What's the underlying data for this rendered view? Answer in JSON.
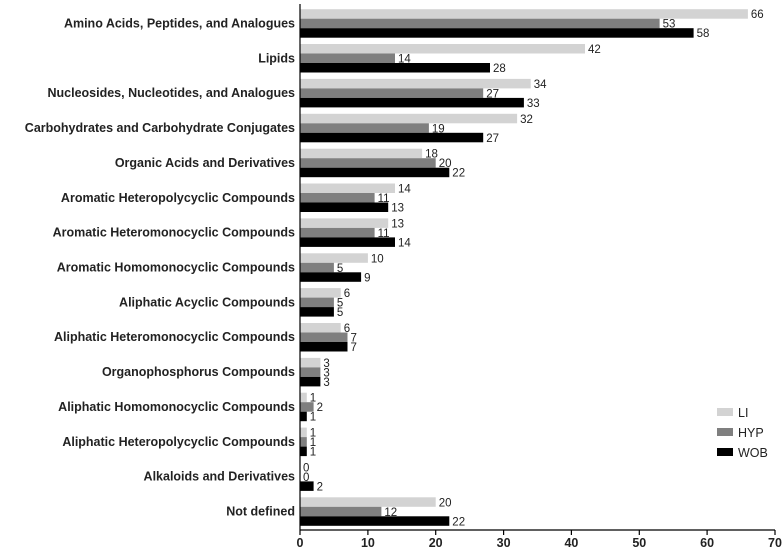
{
  "chart_data": {
    "type": "bar",
    "orientation": "horizontal",
    "categories": [
      "Amino Acids, Peptides, and Analogues",
      "Lipids",
      "Nucleosides, Nucleotides, and Analogues",
      "Carbohydrates and Carbohydrate Conjugates",
      "Organic Acids and Derivatives",
      "Aromatic Heteropolycyclic Compounds",
      "Aromatic Heteromonocyclic Compounds",
      "Aromatic Homomonocyclic Compounds",
      "Aliphatic Acyclic Compounds",
      "Aliphatic Heteromonocyclic Compounds",
      "Organophosphorus Compounds",
      "Aliphatic Homomonocyclic Compounds",
      "Aliphatic Heteropolycyclic Compounds",
      "Alkaloids and Derivatives",
      "Not defined"
    ],
    "series": [
      {
        "name": "LI",
        "color": "#d3d3d3",
        "values": [
          66,
          42,
          34,
          32,
          18,
          14,
          13,
          10,
          6,
          6,
          3,
          1,
          1,
          0,
          20
        ]
      },
      {
        "name": "HYP",
        "color": "#7f7f7f",
        "values": [
          53,
          14,
          27,
          19,
          20,
          11,
          11,
          5,
          5,
          7,
          3,
          2,
          1,
          0,
          12
        ]
      },
      {
        "name": "WOB",
        "color": "#000000",
        "values": [
          58,
          28,
          33,
          27,
          22,
          13,
          14,
          9,
          5,
          7,
          3,
          1,
          1,
          2,
          22
        ]
      }
    ],
    "xlim": [
      0,
      70
    ],
    "xticks": [
      0,
      10,
      20,
      30,
      40,
      50,
      60,
      70
    ],
    "grid": false,
    "legend_position": "bottom-right",
    "title": "",
    "xlabel": "",
    "ylabel": ""
  }
}
